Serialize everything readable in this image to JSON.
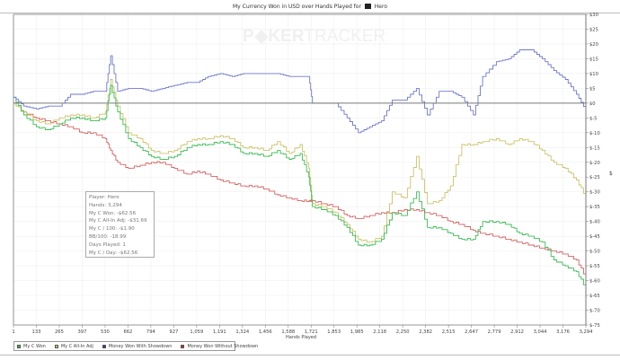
{
  "header": {
    "title_prefix": "My Currency Won in USD over Hands Played for",
    "player_name": "Hero"
  },
  "watermark": {
    "part1": "P",
    "part2": "KER",
    "part3": "TRACKER"
  },
  "stats_box": {
    "lines": [
      "Player: Hero",
      "Hands: 3,294",
      "My C Won: -$62.56",
      "My C All-In Adj: -$31.69",
      "My C / 100: -$1.90",
      "BB/100: -18.99",
      "Days Played: 1",
      "My C / Day: -$62.56"
    ]
  },
  "legend": [
    {
      "label": "My C Won",
      "color": "#2db84a"
    },
    {
      "label": "My C All-In Adj",
      "color": "#c8c060"
    },
    {
      "label": "Money Won With Showdown",
      "color": "#2f3f9e"
    },
    {
      "label": "Money Won Without Showdown",
      "color": "#cc2b2b"
    }
  ],
  "axes": {
    "xlabel": "Hands Played",
    "ylabel": "$"
  },
  "chart_data": {
    "type": "line",
    "title": "My Currency Won in USD over Hands Played for Hero",
    "xlabel": "Hands Played",
    "ylabel": "$",
    "xlim": [
      1,
      3294
    ],
    "ylim": [
      -75,
      30
    ],
    "x_ticks": [
      "1",
      "133",
      "265",
      "397",
      "530",
      "662",
      "794",
      "927",
      "1,059",
      "1,191",
      "1,324",
      "1,456",
      "1,588",
      "1,721",
      "1,853",
      "1,985",
      "2,118",
      "2,250",
      "2,382",
      "2,515",
      "2,647",
      "2,779",
      "2,912",
      "3,044",
      "3,176",
      "3,294"
    ],
    "y_ticks": [
      "$30",
      "$25",
      "$20",
      "$15",
      "$10",
      "$5",
      "$0",
      "$-5",
      "$-10",
      "$-15",
      "$-20",
      "$-25",
      "$-30",
      "$-35",
      "$-40",
      "$-45",
      "$-50",
      "$-55",
      "$-60",
      "$-65",
      "$-70",
      "$-75"
    ],
    "grid": true,
    "legend_position": "bottom",
    "x": [
      1,
      60,
      133,
      200,
      265,
      330,
      397,
      460,
      530,
      560,
      600,
      662,
      730,
      794,
      860,
      927,
      1000,
      1059,
      1120,
      1191,
      1260,
      1324,
      1390,
      1456,
      1520,
      1588,
      1650,
      1700,
      1721,
      1790,
      1853,
      1920,
      1985,
      2050,
      2118,
      2180,
      2250,
      2320,
      2382,
      2450,
      2515,
      2580,
      2647,
      2700,
      2779,
      2850,
      2912,
      2980,
      3044,
      3110,
      3176,
      3240,
      3294
    ],
    "series": [
      {
        "name": "My C Won",
        "values": [
          2,
          -4,
          -8,
          -9,
          -7,
          -5,
          -5,
          -6,
          -5,
          6,
          -3,
          -12,
          -15,
          -18,
          -19,
          -18,
          -15,
          -14,
          -14,
          -13,
          -14,
          -17,
          -17,
          -18,
          -16,
          -19,
          -17,
          -25,
          -35,
          -36,
          -38,
          -42,
          -48,
          -48,
          -46,
          -37,
          -38,
          -30,
          -42,
          -42,
          -44,
          -46,
          -46,
          -40,
          -40,
          -41,
          -44,
          -45,
          -47,
          -53,
          -55,
          -57,
          -62.56
        ]
      },
      {
        "name": "My C All-In Adj",
        "values": [
          0,
          -3,
          -6,
          -7,
          -5,
          -4,
          -4,
          -5,
          -3,
          8,
          -1,
          -10,
          -12,
          -16,
          -17,
          -16,
          -13,
          -12,
          -12,
          -11,
          -12,
          -15,
          -15,
          -16,
          -13,
          -17,
          -14,
          -22,
          -34,
          -35,
          -37,
          -41,
          -46,
          -47,
          -45,
          -30,
          -32,
          -18,
          -34,
          -33,
          -28,
          -14,
          -14,
          -13,
          -12,
          -14,
          -12,
          -13,
          -16,
          -20,
          -22,
          -26,
          -31.69
        ]
      },
      {
        "name": "Money Won With Showdown",
        "values": [
          2,
          -1,
          -2,
          -1,
          -1,
          3,
          3,
          4,
          4,
          16,
          4,
          5,
          5,
          4,
          5,
          6,
          7,
          7,
          9,
          10,
          9,
          10,
          10,
          10,
          10,
          9,
          9,
          9,
          0,
          0,
          0,
          -5,
          -10,
          -8,
          -6,
          1,
          1,
          5,
          -4,
          4,
          4,
          2,
          -4,
          9,
          14,
          15,
          18,
          18,
          15,
          11,
          8,
          3,
          -2.5
        ]
      },
      {
        "name": "Money Won Without Showdown",
        "values": [
          0,
          -3,
          -5,
          -6,
          -7,
          -8,
          -10,
          -10,
          -12,
          -16,
          -20,
          -22,
          -21,
          -20,
          -20,
          -22,
          -24,
          -23,
          -24,
          -26,
          -27,
          -28,
          -28,
          -29,
          -31,
          -32,
          -33,
          -33,
          -33,
          -34,
          -35,
          -38,
          -39,
          -38,
          -37,
          -37,
          -36,
          -36,
          -37,
          -38,
          -40,
          -41,
          -43,
          -44,
          -45,
          -46,
          -47,
          -48,
          -49,
          -50,
          -51,
          -53,
          -59
        ]
      }
    ]
  }
}
